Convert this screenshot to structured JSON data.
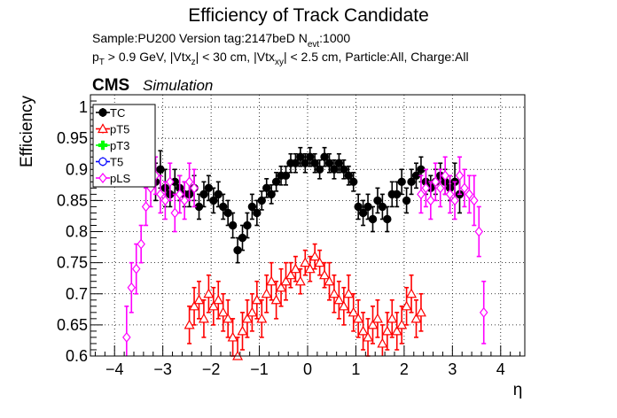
{
  "header": {
    "title": "Efficiency of Track Candidate",
    "sample_line": {
      "prefix": "Sample:PU200   Version tag:2147beD  N",
      "sub": "evt",
      "suffix": ":1000"
    },
    "cuts_line": {
      "p": "p",
      "p_sub": "T",
      "part1": " > 0.9 GeV, |Vtx",
      "z_sub": "z",
      "part2": "| < 30 cm, |Vtx",
      "xy_sub": "xy",
      "part3": "| < 2.5 cm, Particle:All, Charge:All"
    },
    "cms": "CMS",
    "simulation": "Simulation"
  },
  "colors": {
    "TC": "#000000",
    "pT5": "#ff0000",
    "pT3": "#00ff00",
    "T5": "#0000ff",
    "pLS": "#ff00ff"
  },
  "chart_data": {
    "type": "scatter",
    "title": "Efficiency of Track Candidate",
    "xlabel": "η",
    "ylabel": "Efficiency",
    "xlim": [
      -4.5,
      4.5
    ],
    "ylim": [
      0.6,
      1.02
    ],
    "xticks": [
      -4,
      -3,
      -2,
      -1,
      0,
      1,
      2,
      3,
      4
    ],
    "xtick_labels": [
      "−4",
      "−3",
      "−2",
      "−1",
      "0",
      "1",
      "2",
      "3",
      "4"
    ],
    "yticks": [
      0.6,
      0.65,
      0.7,
      0.75,
      0.8,
      0.85,
      0.9,
      0.95,
      1
    ],
    "ytick_labels": [
      "0.6",
      "0.65",
      "0.7",
      "0.75",
      "0.8",
      "0.85",
      "0.9",
      "0.95",
      "1"
    ],
    "grid": true,
    "legend_position": "top-left",
    "series": [
      {
        "name": "TC",
        "marker": "circle-filled",
        "color": "#000000",
        "x": [
          -3.15,
          -3.05,
          -2.95,
          -2.85,
          -2.75,
          -2.65,
          -2.55,
          -2.45,
          -2.35,
          -2.25,
          -2.15,
          -2.05,
          -1.95,
          -1.85,
          -1.75,
          -1.65,
          -1.55,
          -1.45,
          -1.35,
          -1.25,
          -1.15,
          -1.05,
          -0.95,
          -0.85,
          -0.75,
          -0.65,
          -0.55,
          -0.45,
          -0.35,
          -0.25,
          -0.15,
          -0.05,
          0.05,
          0.15,
          0.25,
          0.35,
          0.45,
          0.55,
          0.65,
          0.75,
          0.85,
          0.95,
          1.05,
          1.15,
          1.25,
          1.35,
          1.45,
          1.55,
          1.65,
          1.75,
          1.85,
          1.95,
          2.05,
          2.15,
          2.25,
          2.35,
          2.45,
          2.55,
          2.65,
          2.75,
          2.85,
          2.95,
          3.05,
          3.15
        ],
        "y": [
          0.88,
          0.9,
          0.87,
          0.86,
          0.88,
          0.87,
          0.86,
          0.86,
          0.87,
          0.84,
          0.86,
          0.87,
          0.85,
          0.86,
          0.84,
          0.83,
          0.81,
          0.77,
          0.79,
          0.81,
          0.84,
          0.83,
          0.85,
          0.87,
          0.86,
          0.88,
          0.89,
          0.89,
          0.91,
          0.91,
          0.92,
          0.91,
          0.92,
          0.91,
          0.9,
          0.92,
          0.91,
          0.9,
          0.91,
          0.9,
          0.89,
          0.88,
          0.84,
          0.83,
          0.84,
          0.82,
          0.85,
          0.84,
          0.82,
          0.86,
          0.86,
          0.88,
          0.85,
          0.88,
          0.89,
          0.9,
          0.88,
          0.87,
          0.88,
          0.89,
          0.88,
          0.87,
          0.88,
          0.86
        ],
        "err": [
          0.03,
          0.03,
          0.03,
          0.02,
          0.02,
          0.02,
          0.02,
          0.02,
          0.02,
          0.02,
          0.02,
          0.02,
          0.02,
          0.02,
          0.02,
          0.02,
          0.02,
          0.02,
          0.02,
          0.02,
          0.02,
          0.02,
          0.015,
          0.015,
          0.015,
          0.015,
          0.015,
          0.015,
          0.015,
          0.015,
          0.015,
          0.015,
          0.015,
          0.015,
          0.015,
          0.015,
          0.015,
          0.015,
          0.015,
          0.015,
          0.015,
          0.015,
          0.02,
          0.02,
          0.02,
          0.02,
          0.02,
          0.02,
          0.02,
          0.02,
          0.02,
          0.02,
          0.02,
          0.02,
          0.02,
          0.02,
          0.02,
          0.02,
          0.02,
          0.02,
          0.02,
          0.02,
          0.03,
          0.03
        ]
      },
      {
        "name": "pT5",
        "marker": "triangle-open",
        "color": "#ff0000",
        "x": [
          -2.45,
          -2.35,
          -2.25,
          -2.15,
          -2.05,
          -1.95,
          -1.85,
          -1.75,
          -1.65,
          -1.55,
          -1.45,
          -1.35,
          -1.25,
          -1.15,
          -1.05,
          -0.95,
          -0.85,
          -0.75,
          -0.65,
          -0.55,
          -0.45,
          -0.35,
          -0.25,
          -0.15,
          -0.05,
          0.05,
          0.15,
          0.25,
          0.35,
          0.45,
          0.55,
          0.65,
          0.75,
          0.85,
          0.95,
          1.05,
          1.15,
          1.25,
          1.35,
          1.45,
          1.55,
          1.65,
          1.75,
          1.85,
          1.95,
          2.05,
          2.15,
          2.25,
          2.35
        ],
        "y": [
          0.65,
          0.68,
          0.69,
          0.66,
          0.7,
          0.68,
          0.69,
          0.67,
          0.66,
          0.63,
          0.6,
          0.64,
          0.66,
          0.67,
          0.69,
          0.66,
          0.7,
          0.72,
          0.69,
          0.71,
          0.72,
          0.73,
          0.74,
          0.72,
          0.75,
          0.74,
          0.76,
          0.75,
          0.73,
          0.72,
          0.7,
          0.69,
          0.68,
          0.7,
          0.67,
          0.66,
          0.64,
          0.63,
          0.65,
          0.66,
          0.62,
          0.64,
          0.66,
          0.64,
          0.65,
          0.68,
          0.7,
          0.66,
          0.67
        ],
        "err": [
          0.03,
          0.03,
          0.03,
          0.03,
          0.03,
          0.03,
          0.03,
          0.03,
          0.03,
          0.03,
          0.03,
          0.03,
          0.03,
          0.03,
          0.03,
          0.03,
          0.03,
          0.03,
          0.03,
          0.03,
          0.03,
          0.02,
          0.02,
          0.02,
          0.02,
          0.02,
          0.02,
          0.02,
          0.02,
          0.03,
          0.03,
          0.03,
          0.03,
          0.03,
          0.03,
          0.03,
          0.03,
          0.03,
          0.03,
          0.03,
          0.03,
          0.03,
          0.03,
          0.03,
          0.03,
          0.03,
          0.03,
          0.03,
          0.03
        ]
      },
      {
        "name": "pT3",
        "marker": "cross-filled",
        "color": "#00ff00",
        "x": [],
        "y": [],
        "err": []
      },
      {
        "name": "T5",
        "marker": "circle-open",
        "color": "#0000ff",
        "x": [],
        "y": [],
        "err": []
      },
      {
        "name": "pLS",
        "marker": "diamond-open",
        "color": "#ff00ff",
        "x": [
          -3.75,
          -3.65,
          -3.55,
          -3.45,
          -3.35,
          -3.25,
          -3.15,
          -3.05,
          -2.95,
          -2.85,
          -2.75,
          -2.65,
          -2.55,
          -2.45,
          -2.35,
          2.35,
          2.45,
          2.55,
          2.65,
          2.75,
          2.85,
          2.95,
          3.05,
          3.15,
          3.25,
          3.35,
          3.45,
          3.55,
          3.65
        ],
        "y": [
          0.63,
          0.71,
          0.74,
          0.78,
          0.84,
          0.87,
          0.89,
          0.86,
          0.85,
          0.88,
          0.83,
          0.86,
          0.85,
          0.88,
          0.87,
          0.86,
          0.87,
          0.85,
          0.88,
          0.87,
          0.89,
          0.86,
          0.85,
          0.89,
          0.87,
          0.86,
          0.85,
          0.8,
          0.67
        ],
        "err": [
          0.05,
          0.04,
          0.04,
          0.03,
          0.03,
          0.03,
          0.03,
          0.03,
          0.03,
          0.03,
          0.03,
          0.03,
          0.03,
          0.03,
          0.03,
          0.03,
          0.03,
          0.03,
          0.03,
          0.03,
          0.03,
          0.03,
          0.03,
          0.03,
          0.03,
          0.03,
          0.04,
          0.04,
          0.05
        ]
      }
    ]
  }
}
